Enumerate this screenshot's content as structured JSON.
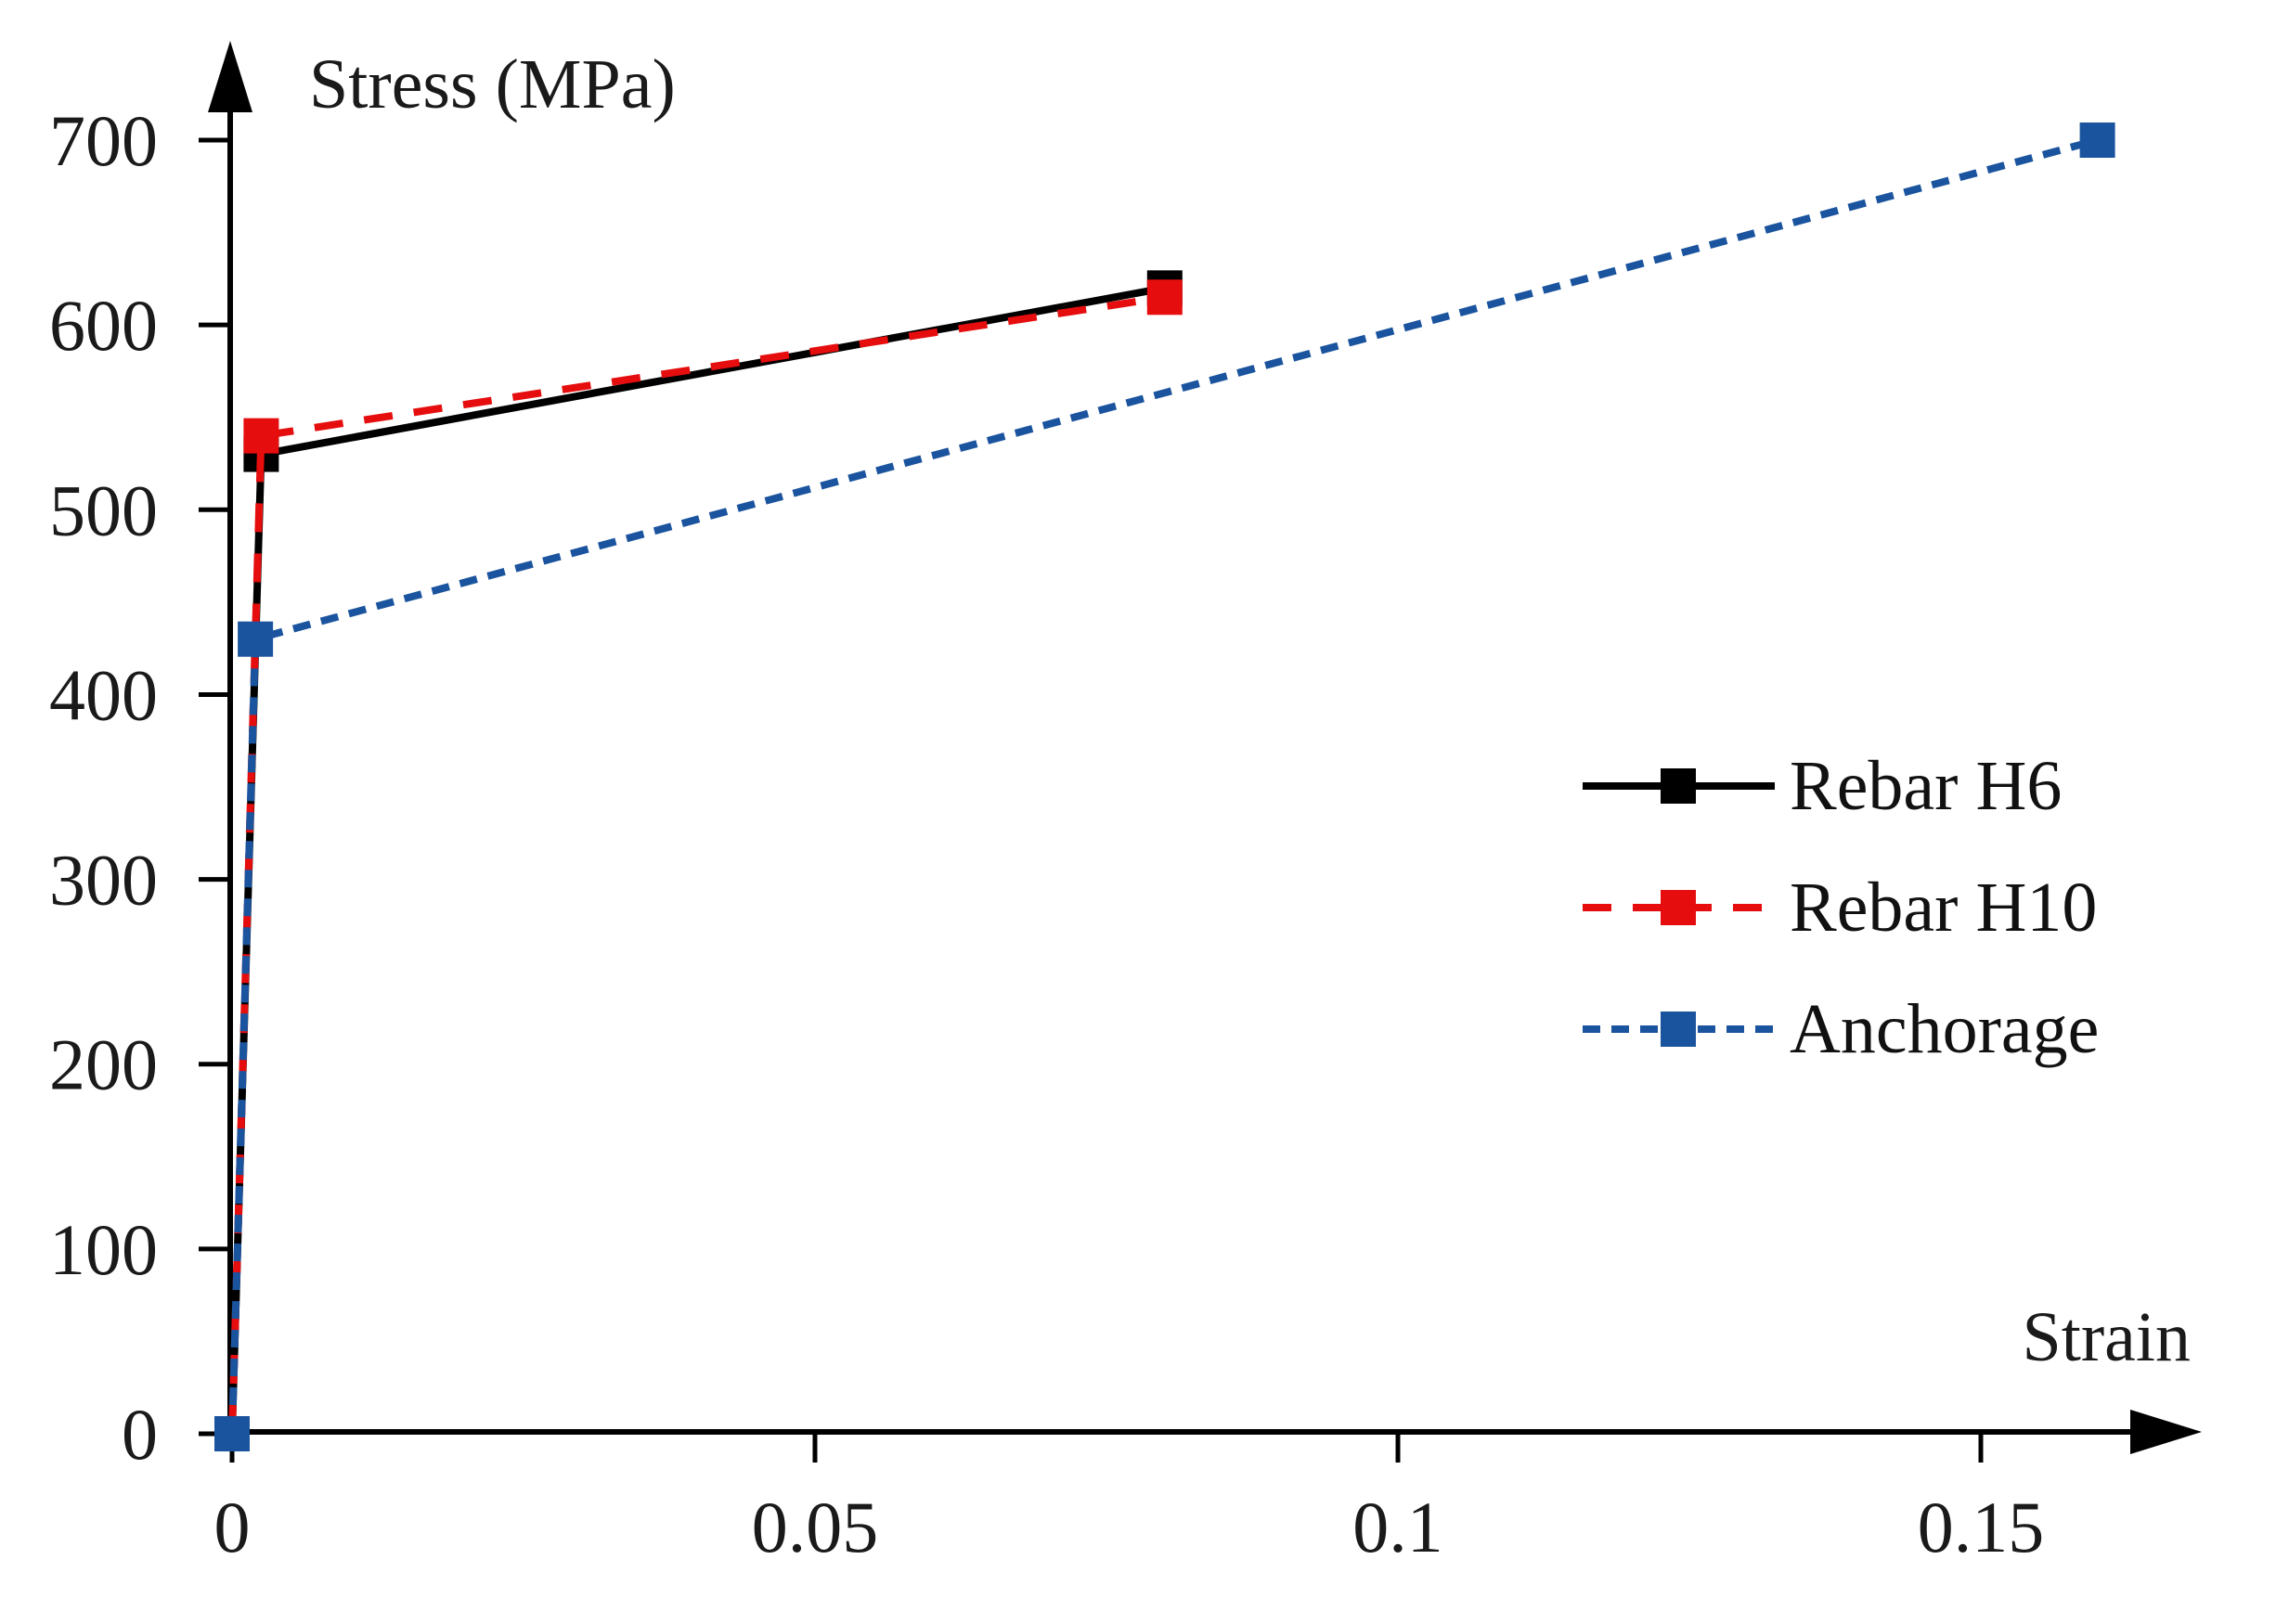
{
  "figure": {
    "kind": "stress-strain curve figure",
    "background_color": "#ffffff",
    "text_color": "#1a1a1a",
    "axis_color": "#000000"
  },
  "chart_data": {
    "type": "line",
    "title": "",
    "xlabel": "Strain",
    "ylabel": "Stress (MPa)",
    "xlim": [
      0,
      0.169
    ],
    "ylim": [
      0,
      750
    ],
    "grid": false,
    "axis_arrows": true,
    "legend_position": "right-middle",
    "x_ticks": [
      {
        "value": 0,
        "label": "0"
      },
      {
        "value": 0.05,
        "label": "0.05"
      },
      {
        "value": 0.1,
        "label": "0.1"
      },
      {
        "value": 0.15,
        "label": "0.15"
      }
    ],
    "y_ticks": [
      {
        "value": 0,
        "label": "0"
      },
      {
        "value": 100,
        "label": "100"
      },
      {
        "value": 200,
        "label": "200"
      },
      {
        "value": 300,
        "label": "300"
      },
      {
        "value": 400,
        "label": "400"
      },
      {
        "value": 500,
        "label": "500"
      },
      {
        "value": 600,
        "label": "600"
      },
      {
        "value": 700,
        "label": "700"
      }
    ],
    "series": [
      {
        "name": "Rebar H6",
        "color": "#000000",
        "line_style": "solid",
        "marker": "square",
        "points": [
          [
            0,
            0
          ],
          [
            0.0025,
            530
          ],
          [
            0.08,
            620
          ]
        ]
      },
      {
        "name": "Rebar H10",
        "color": "#e50d0d",
        "line_style": "long-dash",
        "marker": "square",
        "points": [
          [
            0,
            0
          ],
          [
            0.0025,
            540
          ],
          [
            0.08,
            615
          ]
        ]
      },
      {
        "name": "Anchorage",
        "color": "#1b549e",
        "line_style": "short-dash",
        "marker": "square",
        "points": [
          [
            0,
            0
          ],
          [
            0.002,
            430
          ],
          [
            0.16,
            700
          ]
        ]
      }
    ]
  }
}
